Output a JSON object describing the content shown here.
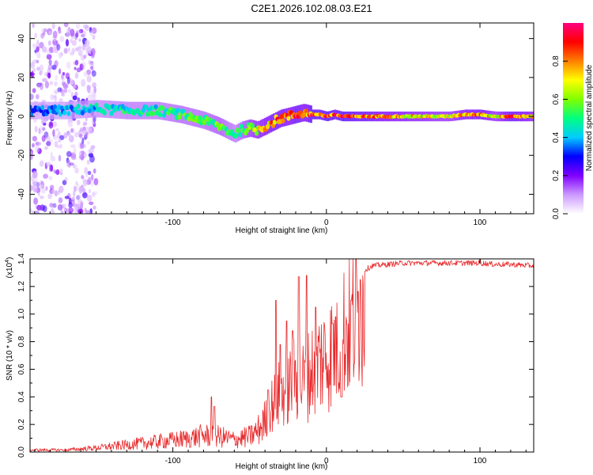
{
  "title": "C2E1.2026.102.08.03.E21",
  "chart_data": [
    {
      "type": "heatmap",
      "name": "spectrogram",
      "xlabel": "Height of straight line (km)",
      "ylabel": "Frequency (Hz)",
      "xlim": [
        -193,
        135
      ],
      "ylim": [
        -50,
        48
      ],
      "xticks": [
        -100,
        0,
        100
      ],
      "xtick_labels": [
        "-100",
        "0",
        "100"
      ],
      "yticks": [
        -40,
        -20,
        0,
        20,
        40
      ],
      "ytick_labels": [
        "-40",
        "-20",
        "0",
        "20",
        "40"
      ],
      "colorbar": {
        "label": "Normalized spectral amplitude",
        "range": [
          0,
          1
        ],
        "ticks": [
          0.0,
          0.2,
          0.4,
          0.6,
          0.8
        ],
        "tick_labels": [
          "0.0",
          "0.2",
          "0.4",
          "0.6",
          "0.8"
        ],
        "colors": [
          "#ffffff",
          "#cc99ff",
          "#8000ff",
          "#0000ff",
          "#00ccff",
          "#00ff80",
          "#80ff00",
          "#ffff00",
          "#ff8000",
          "#ff0000",
          "#ff0080"
        ]
      },
      "ridge": {
        "x": [
          -190,
          -170,
          -150,
          -130,
          -110,
          -95,
          -80,
          -70,
          -65,
          -60,
          -55,
          -50,
          -45,
          -40,
          -35,
          -30,
          -25,
          -20,
          -15,
          -10,
          -5,
          0,
          5,
          10,
          20,
          40,
          60,
          80,
          90,
          100,
          110,
          120,
          135
        ],
        "freq": [
          3,
          3,
          4,
          3,
          3,
          1,
          -2,
          -5,
          -7,
          -9,
          -7,
          -6,
          -7,
          -5,
          -3,
          -1,
          0,
          1,
          2,
          1,
          1,
          0,
          1,
          0,
          0,
          0,
          0,
          0,
          1,
          1,
          0,
          0,
          0
        ],
        "amplitude": [
          0.35,
          0.4,
          0.45,
          0.5,
          0.5,
          0.55,
          0.55,
          0.6,
          0.55,
          0.5,
          0.6,
          0.7,
          0.75,
          0.8,
          0.85,
          0.85,
          0.8,
          0.9,
          0.8,
          0.95,
          0.9,
          0.95,
          0.9,
          0.95,
          0.9,
          0.8,
          0.75,
          0.7,
          0.8,
          0.85,
          0.7,
          0.9,
          0.75
        ]
      },
      "noise_region_x": [
        -193,
        -150
      ]
    },
    {
      "type": "line",
      "name": "snr",
      "xlabel": "Height of straight line (km)",
      "ylabel": "SNR (10 * v/v)",
      "scale_label": "(x10",
      "scale_exponent": "4",
      "scale_suffix": ")",
      "xlim": [
        -193,
        135
      ],
      "ylim": [
        0,
        1.4
      ],
      "xticks": [
        -100,
        0,
        100
      ],
      "xtick_labels": [
        "-100",
        "0",
        "100"
      ],
      "yticks": [
        0.0,
        0.2,
        0.4,
        0.6,
        0.8,
        1.0,
        1.2,
        1.4
      ],
      "ytick_labels": [
        "0.0",
        "0.2",
        "0.4",
        "0.6",
        "0.8",
        "1.0",
        "1.2",
        "1.4"
      ],
      "series": [
        {
          "name": "SNR",
          "color": "#e8292b",
          "envelope": {
            "x": [
              -193,
              -170,
              -150,
              -130,
              -110,
              -90,
              -80,
              -70,
              -60,
              -50,
              -45,
              -40,
              -35,
              -30,
              -25,
              -20,
              -15,
              -10,
              -5,
              0,
              5,
              10,
              15,
              20,
              25,
              30,
              40,
              50,
              60,
              80,
              100,
              110,
              120,
              135
            ],
            "y": [
              0.02,
              0.02,
              0.04,
              0.07,
              0.1,
              0.13,
              0.16,
              0.15,
              0.12,
              0.15,
              0.2,
              0.3,
              0.45,
              0.55,
              0.6,
              0.7,
              0.65,
              0.75,
              0.85,
              0.9,
              0.95,
              1.1,
              1.2,
              1.28,
              1.32,
              1.35,
              1.36,
              1.37,
              1.37,
              1.37,
              1.37,
              1.36,
              1.36,
              1.35
            ]
          },
          "spikes": [
            {
              "x": -75,
              "y": 0.4
            },
            {
              "x": -73,
              "y": 0.33
            },
            {
              "x": -38,
              "y": 0.45
            },
            {
              "x": -33,
              "y": 1.1
            },
            {
              "x": -30,
              "y": 0.78
            },
            {
              "x": -26,
              "y": 0.95
            },
            {
              "x": -22,
              "y": 0.88
            },
            {
              "x": -18,
              "y": 1.27
            },
            {
              "x": -13,
              "y": 1.28
            },
            {
              "x": -7,
              "y": 1.05
            },
            {
              "x": 4,
              "y": 0.93
            },
            {
              "x": 6,
              "y": 0.98
            },
            {
              "x": 10,
              "y": 0.4
            },
            {
              "x": 16,
              "y": 1.1
            },
            {
              "x": 22,
              "y": 1.25
            },
            {
              "x": 100,
              "y": 1.4
            }
          ]
        }
      ]
    }
  ]
}
